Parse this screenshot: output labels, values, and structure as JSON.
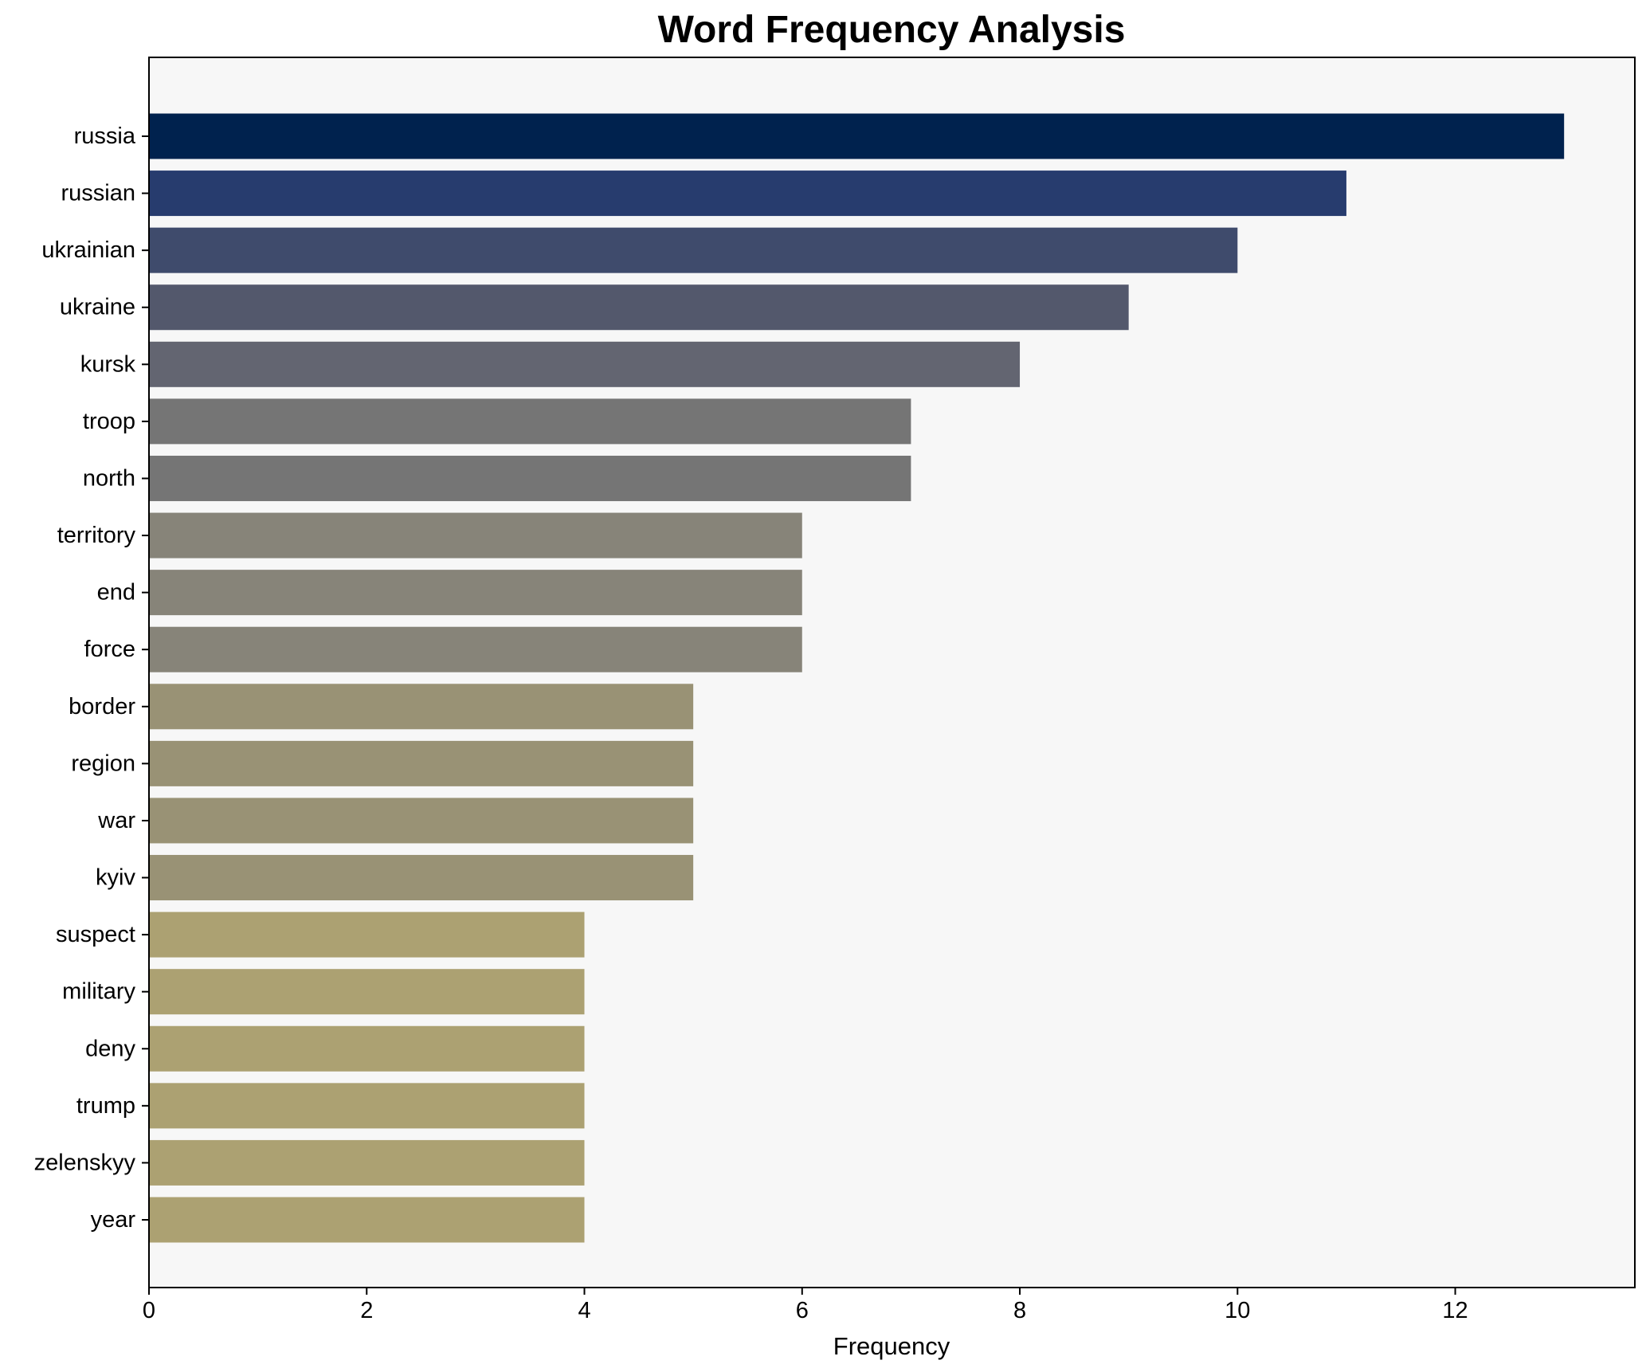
{
  "chart_data": {
    "type": "bar",
    "orientation": "horizontal",
    "title": "Word Frequency Analysis",
    "xlabel": "Frequency",
    "ylabel": "",
    "xlim": [
      0,
      13.65
    ],
    "xticks": [
      0,
      2,
      4,
      6,
      8,
      10,
      12
    ],
    "grid": false,
    "legend": "none",
    "plot_background": "#f7f7f7",
    "categories": [
      "russia",
      "russian",
      "ukrainian",
      "ukraine",
      "kursk",
      "troop",
      "north",
      "territory",
      "end",
      "force",
      "border",
      "region",
      "war",
      "kyiv",
      "suspect",
      "military",
      "deny",
      "trump",
      "zelenskyy",
      "year"
    ],
    "values": [
      13,
      11,
      10,
      9,
      8,
      7,
      7,
      6,
      6,
      6,
      5,
      5,
      5,
      5,
      4,
      4,
      4,
      4,
      4,
      4
    ],
    "colors": [
      "#00224e",
      "#273c6e",
      "#3f4b6c",
      "#53586c",
      "#636571",
      "#757575",
      "#757575",
      "#878479",
      "#878479",
      "#878479",
      "#999275",
      "#999275",
      "#999275",
      "#999275",
      "#aca172",
      "#aca172",
      "#aca172",
      "#aca172",
      "#aca172",
      "#aca172"
    ]
  }
}
